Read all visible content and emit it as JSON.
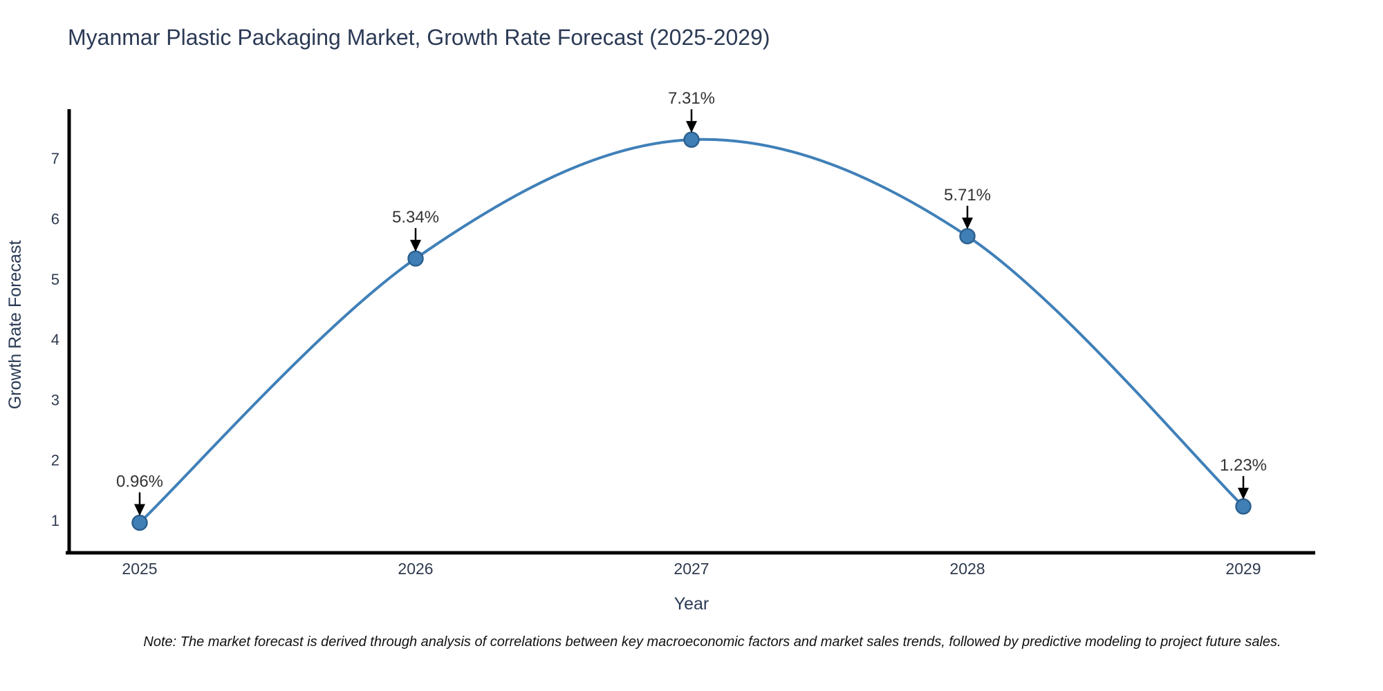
{
  "note": "Note: The market forecast is derived through analysis of correlations between key macroeconomic factors and market sales trends, followed by predictive modeling to project future sales.",
  "chart_data": {
    "type": "line",
    "title": "Myanmar Plastic Packaging Market, Growth Rate Forecast (2025-2029)",
    "xlabel": "Year",
    "ylabel": "Growth Rate Forecast",
    "categories": [
      "2025",
      "2026",
      "2027",
      "2028",
      "2029"
    ],
    "values": [
      0.96,
      5.34,
      7.31,
      5.71,
      1.23
    ],
    "point_labels": [
      "0.96%",
      "5.34%",
      "7.31%",
      "5.71%",
      "1.23%"
    ],
    "yticks": [
      1,
      2,
      3,
      4,
      5,
      6,
      7
    ],
    "ylim": [
      0.6,
      7.75
    ],
    "grid": false,
    "legend": "none",
    "curve": "smooth-spline",
    "marker": "circle",
    "colors": {
      "line": "#4080b8",
      "marker_fill": "#3f7fb6",
      "marker_edge": "#2d618f",
      "axis_spine": "#000000",
      "tick_label": "#2e3a4e",
      "axis_title": "#2b3a55",
      "annotation_text": "#333333",
      "annotation_arrow": "#000000"
    }
  }
}
